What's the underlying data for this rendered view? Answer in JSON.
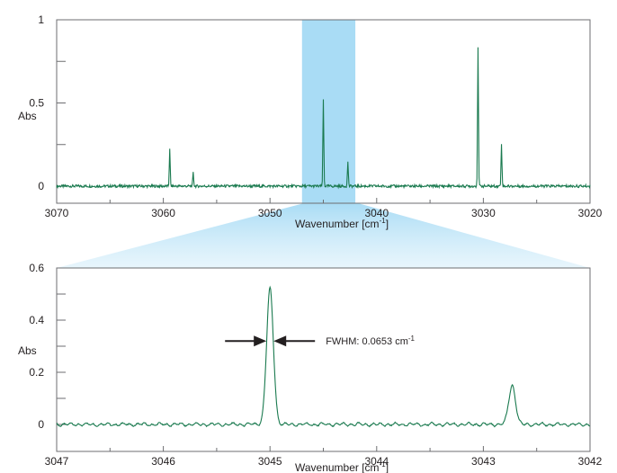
{
  "chart_data": [
    {
      "type": "line",
      "panel": "overview",
      "xlabel": "Wavenumber [cm",
      "xlabel_sup": "-1",
      "xlabel_close": "]",
      "ylabel": "Abs",
      "xlim": [
        3070,
        3020
      ],
      "ylim": [
        0,
        1
      ],
      "x_reversed": true,
      "x_ticks": [
        3070,
        3060,
        3050,
        3040,
        3030,
        3020
      ],
      "x_tick_labels": [
        "3070",
        "3060",
        "3050",
        "3040",
        "3030",
        "3020"
      ],
      "y_ticks": [
        0,
        0.5,
        1
      ],
      "y_tick_labels": [
        "0",
        "0.5",
        "1"
      ],
      "highlight_band": [
        3047,
        3042
      ],
      "highlight_color": "#a9dcf5",
      "line_color": "#1a7a4f",
      "baseline": 0.0,
      "peaks": [
        {
          "x": 3059.4,
          "y": 0.22
        },
        {
          "x": 3057.2,
          "y": 0.08
        },
        {
          "x": 3045.0,
          "y": 0.52
        },
        {
          "x": 3042.7,
          "y": 0.15
        },
        {
          "x": 3030.5,
          "y": 0.84
        },
        {
          "x": 3028.3,
          "y": 0.26
        }
      ]
    },
    {
      "type": "line",
      "panel": "zoom",
      "xlabel": "Wavenumber [cm",
      "xlabel_sup": "-1",
      "xlabel_close": "]",
      "ylabel": "Abs",
      "xlim": [
        3047,
        3042
      ],
      "ylim": [
        0,
        0.6
      ],
      "x_reversed": true,
      "x_ticks": [
        3047,
        3046,
        3045,
        3044,
        3043,
        3042
      ],
      "x_tick_labels": [
        "3047",
        "3046",
        "3045",
        "3044",
        "3043",
        "3042"
      ],
      "y_ticks": [
        0,
        0.2,
        0.4,
        0.6
      ],
      "y_tick_labels": [
        "0",
        "0.2",
        "0.4",
        "0.6"
      ],
      "line_color": "#1a7a4f",
      "peaks": [
        {
          "x": 3045.0,
          "y": 0.52
        },
        {
          "x": 3042.73,
          "y": 0.15
        }
      ],
      "annotation": {
        "text": "FWHM: 0.0653 cm",
        "text_sup": "-1",
        "peak_x": 3045.0,
        "y": 0.32
      }
    }
  ]
}
